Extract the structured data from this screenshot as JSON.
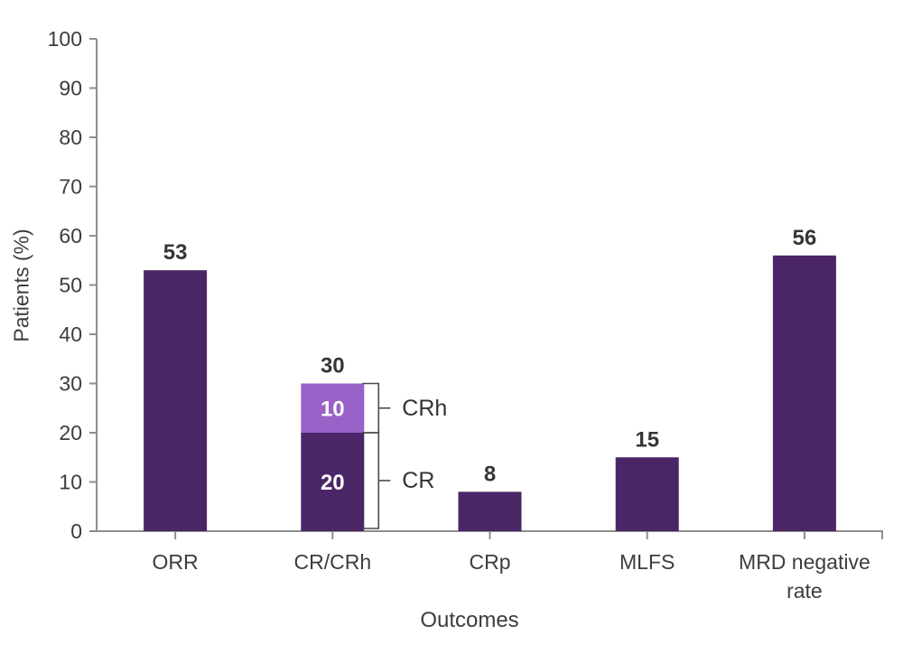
{
  "chart_data": {
    "type": "bar",
    "stacked": true,
    "title": "",
    "xlabel": "Outcomes",
    "ylabel": "Patients (%)",
    "ylim": [
      0,
      100
    ],
    "yticks": [
      0,
      10,
      20,
      30,
      40,
      50,
      60,
      70,
      80,
      90,
      100
    ],
    "grid": false,
    "legend_position": "none",
    "categories": [
      "ORR",
      "CR/CRh",
      "CRp",
      "MLFS",
      "MRD negative rate"
    ],
    "category_lines": [
      [
        "ORR"
      ],
      [
        "CR/CRh"
      ],
      [
        "CRp"
      ],
      [
        "MLFS"
      ],
      [
        "MRD negative",
        "rate"
      ]
    ],
    "bars": [
      {
        "category": "ORR",
        "total": 53,
        "total_label": "53",
        "segments": [
          {
            "name": "ORR",
            "value": 53,
            "color": "#4B2667"
          }
        ]
      },
      {
        "category": "CR/CRh",
        "total": 30,
        "total_label": "30",
        "segments": [
          {
            "name": "CR",
            "value": 20,
            "color": "#4B2667",
            "in_bar_label": "20"
          },
          {
            "name": "CRh",
            "value": 10,
            "color": "#9A61C8",
            "in_bar_label": "10"
          }
        ]
      },
      {
        "category": "CRp",
        "total": 8,
        "total_label": "8",
        "segments": [
          {
            "name": "CRp",
            "value": 8,
            "color": "#4B2667"
          }
        ]
      },
      {
        "category": "MLFS",
        "total": 15,
        "total_label": "15",
        "segments": [
          {
            "name": "MLFS",
            "value": 15,
            "color": "#4B2667"
          }
        ]
      },
      {
        "category": "MRD negative rate",
        "total": 56,
        "total_label": "56",
        "segments": [
          {
            "name": "MRD negative rate",
            "value": 56,
            "color": "#4B2667"
          }
        ]
      }
    ],
    "annotations": [
      {
        "bar": "CR/CRh",
        "label": "CRh",
        "span": [
          20,
          30
        ]
      },
      {
        "bar": "CR/CRh",
        "label": "CR",
        "span": [
          0,
          20
        ]
      }
    ],
    "colors": {
      "bar_dark_purple": "#4B2667",
      "bar_light_purple": "#9A61C8",
      "axis": "#8E8E8E",
      "tick_text": "#3D3D3D",
      "value_label": "#363636",
      "in_bar_label": "#FFFFFF",
      "bracket": "#4A4A4A"
    }
  }
}
